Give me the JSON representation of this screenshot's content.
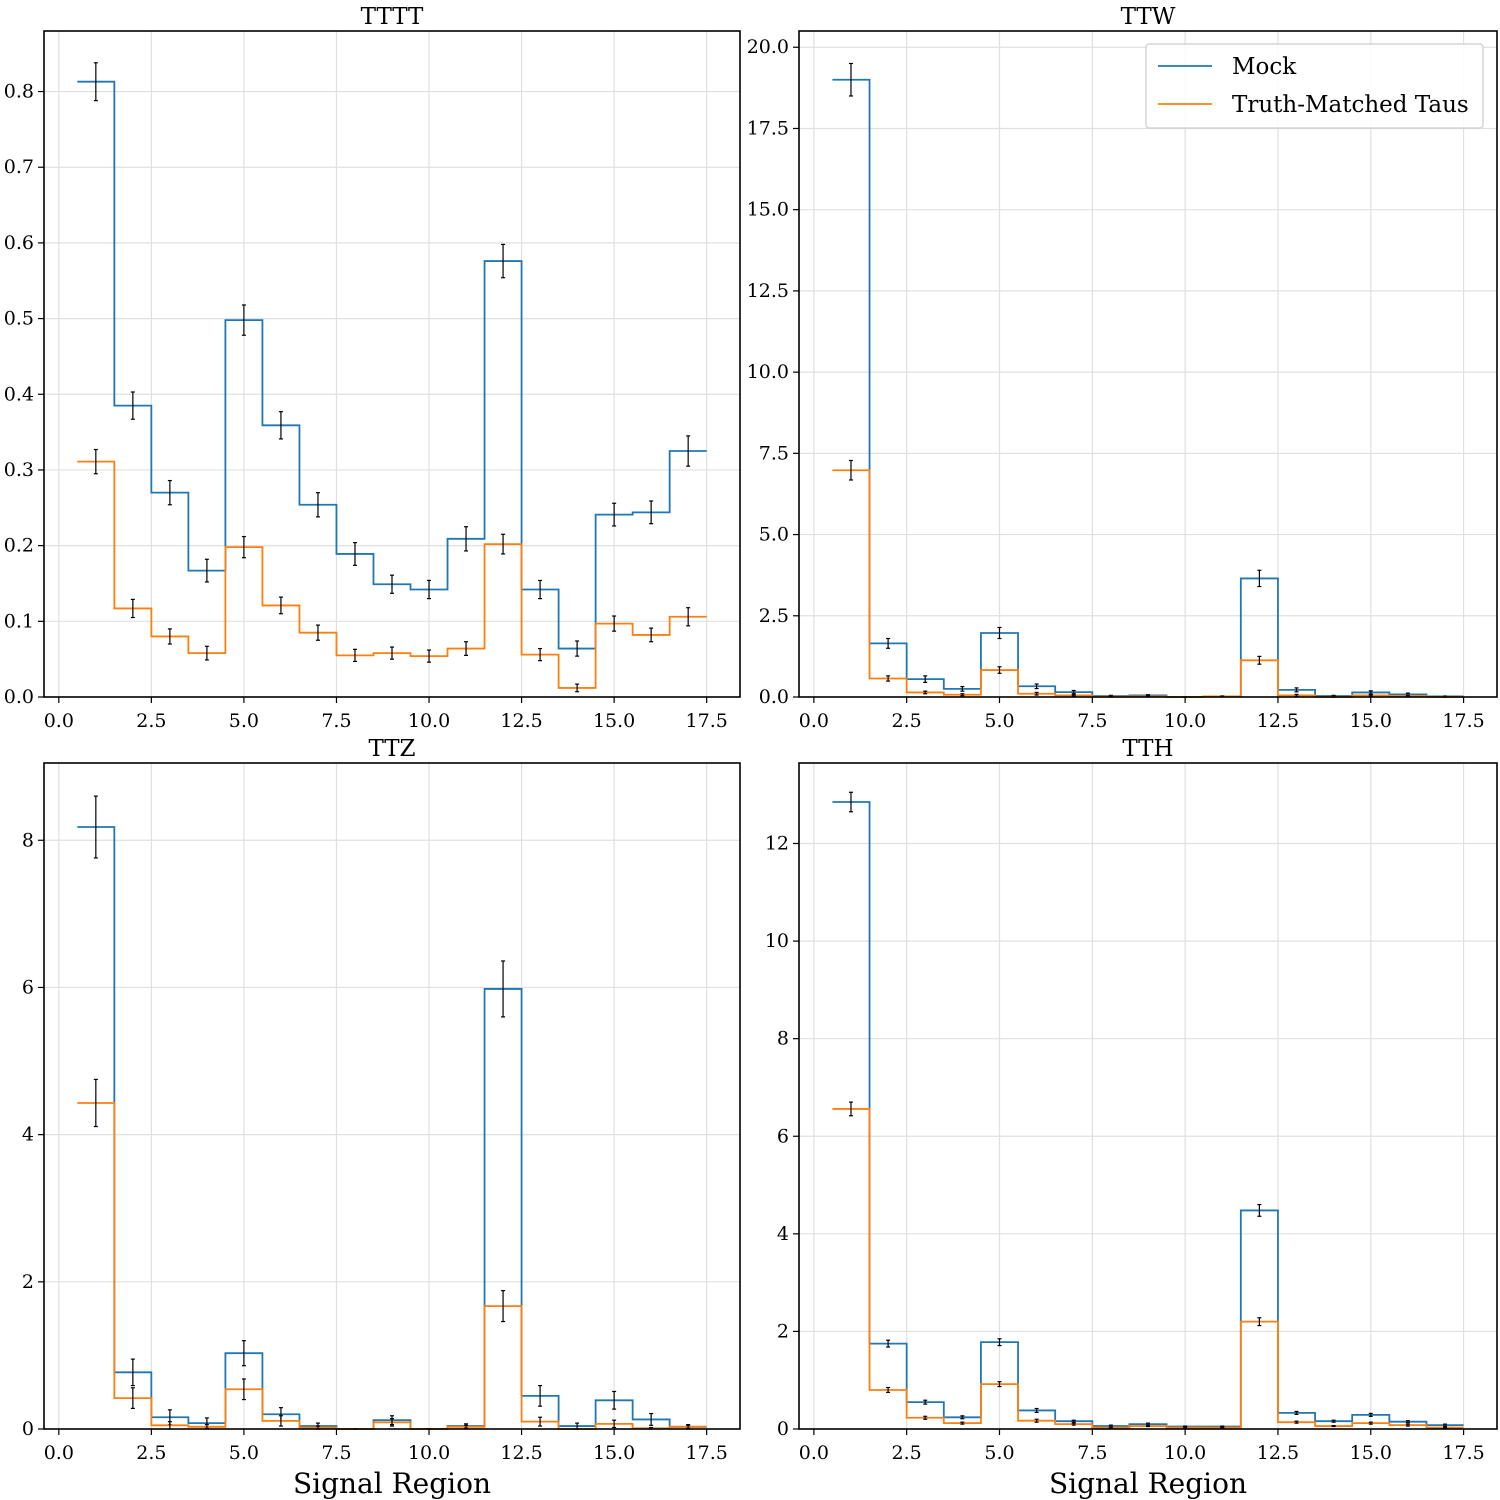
{
  "figure": {
    "legend_position": "upper-right",
    "legend_panel": 1,
    "legend_entries": [
      {
        "label": "Mock",
        "color": "#1f77b4"
      },
      {
        "label": "Truth-Matched Taus",
        "color": "#ff7f0e"
      }
    ]
  },
  "chart_data": [
    {
      "type": "line",
      "step": true,
      "grid": true,
      "title": "TTTT",
      "xlabel": "",
      "ylabel": "",
      "xlim": [
        -0.4,
        18.4
      ],
      "ylim": [
        0,
        0.88
      ],
      "xticks": [
        "0.0",
        "2.5",
        "5.0",
        "7.5",
        "10.0",
        "12.5",
        "15.0",
        "17.5"
      ],
      "yticks": [
        "0.0",
        "0.1",
        "0.2",
        "0.3",
        "0.4",
        "0.5",
        "0.6",
        "0.7",
        "0.8"
      ],
      "x": [
        1,
        2,
        3,
        4,
        5,
        6,
        7,
        8,
        9,
        10,
        11,
        12,
        13,
        14,
        15,
        16,
        17
      ],
      "series": [
        {
          "name": "Mock",
          "color": "#1f77b4",
          "values": [
            0.813,
            0.385,
            0.27,
            0.167,
            0.498,
            0.359,
            0.254,
            0.189,
            0.149,
            0.142,
            0.209,
            0.576,
            0.142,
            0.064,
            0.241,
            0.244,
            0.325
          ],
          "errors": [
            0.025,
            0.018,
            0.016,
            0.015,
            0.02,
            0.018,
            0.016,
            0.015,
            0.012,
            0.012,
            0.016,
            0.022,
            0.012,
            0.01,
            0.015,
            0.015,
            0.02
          ]
        },
        {
          "name": "Truth-Matched Taus",
          "color": "#ff7f0e",
          "values": [
            0.311,
            0.117,
            0.08,
            0.058,
            0.198,
            0.121,
            0.085,
            0.055,
            0.058,
            0.054,
            0.064,
            0.202,
            0.056,
            0.012,
            0.097,
            0.082,
            0.106
          ],
          "errors": [
            0.016,
            0.012,
            0.01,
            0.009,
            0.014,
            0.011,
            0.01,
            0.008,
            0.008,
            0.008,
            0.009,
            0.013,
            0.008,
            0.005,
            0.01,
            0.009,
            0.012
          ]
        }
      ]
    },
    {
      "type": "line",
      "step": true,
      "grid": true,
      "title": "TTW",
      "xlabel": "",
      "ylabel": "",
      "xlim": [
        -0.4,
        18.4
      ],
      "ylim": [
        0,
        20.5
      ],
      "xticks": [
        "0.0",
        "2.5",
        "5.0",
        "7.5",
        "10.0",
        "12.5",
        "15.0",
        "17.5"
      ],
      "yticks": [
        "0.0",
        "2.5",
        "5.0",
        "7.5",
        "10.0",
        "12.5",
        "15.0",
        "17.5",
        "20.0"
      ],
      "x": [
        1,
        2,
        3,
        4,
        5,
        6,
        7,
        8,
        9,
        10,
        11,
        12,
        13,
        14,
        15,
        16,
        17
      ],
      "series": [
        {
          "name": "Mock",
          "color": "#1f77b4",
          "values": [
            19.0,
            1.65,
            0.55,
            0.25,
            1.97,
            0.33,
            0.15,
            0.03,
            0.05,
            0.0,
            0.02,
            3.65,
            0.22,
            0.03,
            0.14,
            0.08,
            0.02
          ],
          "errors": [
            0.5,
            0.15,
            0.1,
            0.07,
            0.17,
            0.07,
            0.05,
            0.02,
            0.02,
            0.0,
            0.01,
            0.25,
            0.06,
            0.02,
            0.05,
            0.04,
            0.01
          ]
        },
        {
          "name": "Truth-Matched Taus",
          "color": "#ff7f0e",
          "values": [
            6.98,
            0.57,
            0.14,
            0.07,
            0.83,
            0.1,
            0.05,
            0.01,
            0.02,
            0.0,
            0.02,
            1.13,
            0.05,
            0.0,
            0.05,
            0.03,
            0.0
          ],
          "errors": [
            0.3,
            0.08,
            0.04,
            0.03,
            0.1,
            0.04,
            0.02,
            0.01,
            0.01,
            0.0,
            0.01,
            0.12,
            0.03,
            0.0,
            0.02,
            0.02,
            0.0
          ]
        }
      ]
    },
    {
      "type": "line",
      "step": true,
      "grid": true,
      "title": "TTZ",
      "xlabel": "Signal Region",
      "ylabel": "",
      "xlim": [
        -0.4,
        18.4
      ],
      "ylim": [
        0,
        9.05
      ],
      "xticks": [
        "0.0",
        "2.5",
        "5.0",
        "7.5",
        "10.0",
        "12.5",
        "15.0",
        "17.5"
      ],
      "yticks": [
        "0",
        "2",
        "4",
        "6",
        "8"
      ],
      "x": [
        1,
        2,
        3,
        4,
        5,
        6,
        7,
        8,
        9,
        10,
        11,
        12,
        13,
        14,
        15,
        16,
        17
      ],
      "series": [
        {
          "name": "Mock",
          "color": "#1f77b4",
          "values": [
            8.18,
            0.77,
            0.16,
            0.08,
            1.03,
            0.2,
            0.04,
            0.0,
            0.12,
            0.0,
            0.04,
            5.98,
            0.45,
            0.04,
            0.39,
            0.13,
            0.03
          ],
          "errors": [
            0.42,
            0.18,
            0.1,
            0.07,
            0.17,
            0.09,
            0.04,
            0.0,
            0.06,
            0.0,
            0.03,
            0.38,
            0.14,
            0.04,
            0.12,
            0.08,
            0.03
          ]
        },
        {
          "name": "Truth-Matched Taus",
          "color": "#ff7f0e",
          "values": [
            4.43,
            0.42,
            0.05,
            0.03,
            0.54,
            0.11,
            0.02,
            0.0,
            0.09,
            0.0,
            0.03,
            1.67,
            0.1,
            0.0,
            0.07,
            0.01,
            0.03
          ],
          "errors": [
            0.32,
            0.14,
            0.05,
            0.03,
            0.14,
            0.07,
            0.02,
            0.0,
            0.05,
            0.0,
            0.02,
            0.21,
            0.06,
            0.0,
            0.05,
            0.01,
            0.02
          ]
        }
      ]
    },
    {
      "type": "line",
      "step": true,
      "grid": true,
      "title": "TTH",
      "xlabel": "Signal Region",
      "ylabel": "",
      "xlim": [
        -0.4,
        18.4
      ],
      "ylim": [
        0,
        13.65
      ],
      "xticks": [
        "0.0",
        "2.5",
        "5.0",
        "7.5",
        "10.0",
        "12.5",
        "15.0",
        "17.5"
      ],
      "yticks": [
        "0",
        "2",
        "4",
        "6",
        "8",
        "10",
        "12"
      ],
      "x": [
        1,
        2,
        3,
        4,
        5,
        6,
        7,
        8,
        9,
        10,
        11,
        12,
        13,
        14,
        15,
        16,
        17
      ],
      "series": [
        {
          "name": "Mock",
          "color": "#1f77b4",
          "values": [
            12.85,
            1.75,
            0.55,
            0.24,
            1.78,
            0.38,
            0.16,
            0.06,
            0.1,
            0.05,
            0.05,
            4.48,
            0.33,
            0.16,
            0.29,
            0.15,
            0.08
          ],
          "errors": [
            0.2,
            0.07,
            0.04,
            0.03,
            0.07,
            0.04,
            0.02,
            0.02,
            0.02,
            0.01,
            0.01,
            0.12,
            0.03,
            0.02,
            0.03,
            0.02,
            0.02
          ]
        },
        {
          "name": "Truth-Matched Taus",
          "color": "#ff7f0e",
          "values": [
            6.56,
            0.8,
            0.23,
            0.12,
            0.92,
            0.17,
            0.1,
            0.03,
            0.06,
            0.03,
            0.03,
            2.2,
            0.14,
            0.06,
            0.12,
            0.08,
            0.03
          ],
          "errors": [
            0.14,
            0.05,
            0.03,
            0.02,
            0.05,
            0.03,
            0.02,
            0.01,
            0.01,
            0.01,
            0.01,
            0.08,
            0.02,
            0.01,
            0.02,
            0.02,
            0.01
          ]
        }
      ]
    }
  ]
}
